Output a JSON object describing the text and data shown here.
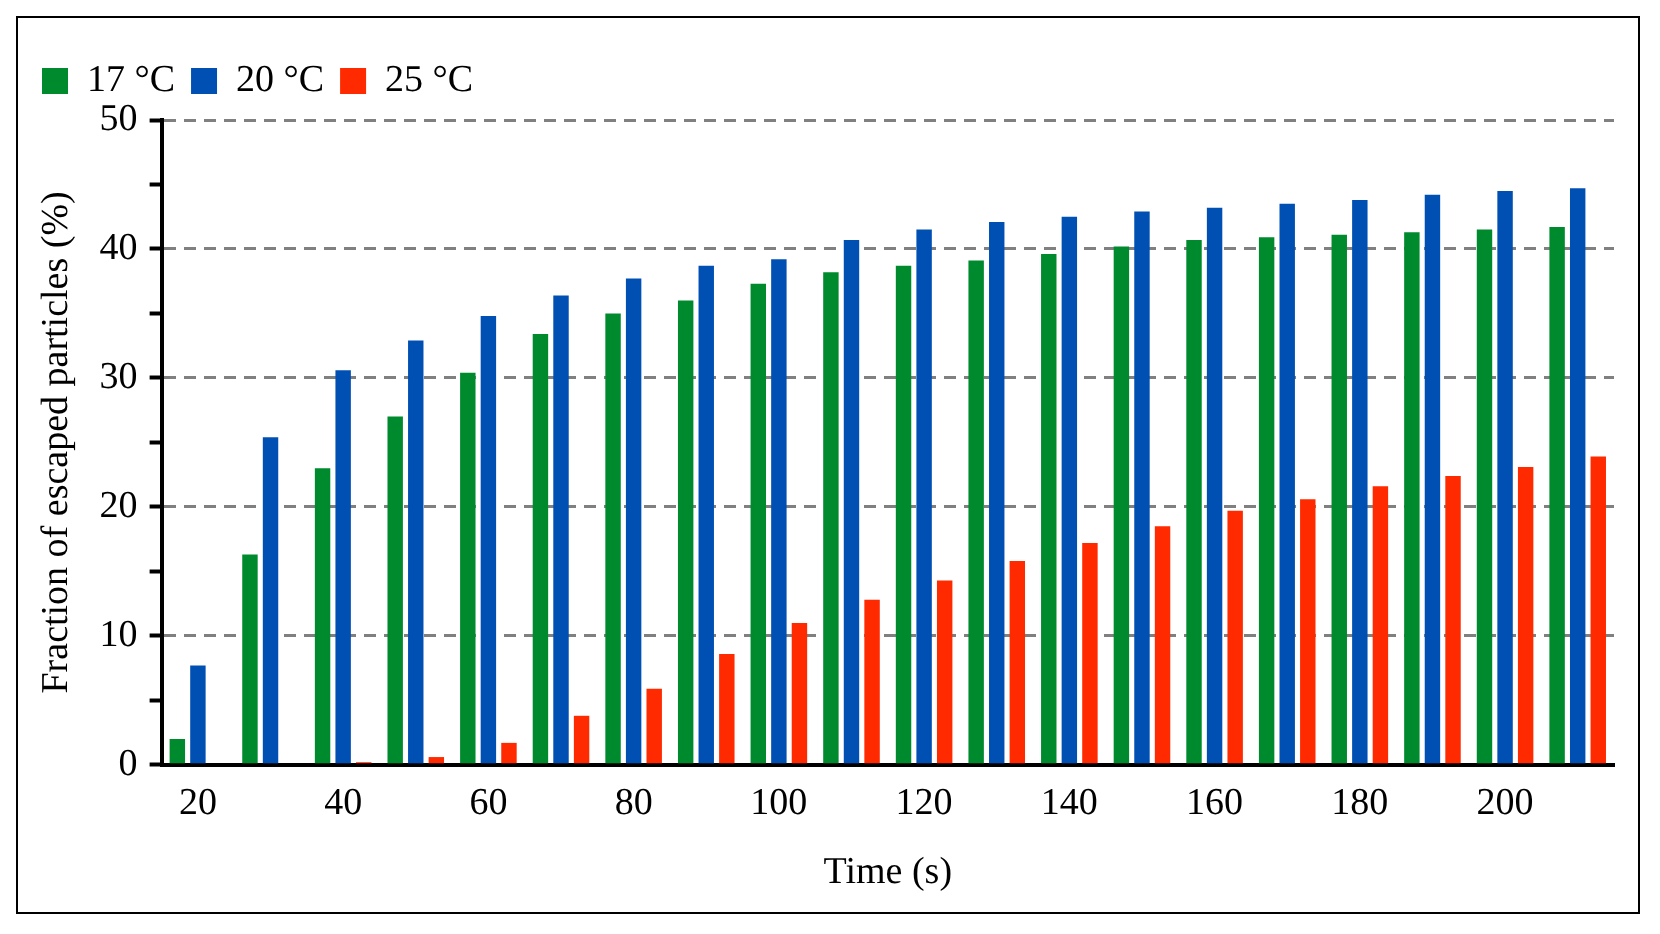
{
  "chart_data": {
    "type": "bar",
    "xlabel": "Time (s)",
    "ylabel": "Fraction of escaped particles (%)",
    "categories": [
      "20",
      null,
      "40",
      null,
      "60",
      null,
      "80",
      null,
      "100",
      null,
      "120",
      null,
      "140",
      null,
      "160",
      null,
      "180",
      null,
      "200",
      null
    ],
    "series": [
      {
        "name": "17 °C",
        "color": "#008a2e",
        "values": [
          2,
          16.3,
          23,
          27,
          30.4,
          33.4,
          35,
          36,
          37.3,
          38.2,
          38.7,
          39.1,
          39.6,
          40.2,
          40.7,
          40.9,
          41.1,
          41.3,
          41.5,
          41.7
        ]
      },
      {
        "name": "20 °C",
        "color": "#0050b4",
        "values": [
          7.7,
          25.4,
          30.6,
          32.9,
          34.8,
          36.4,
          37.7,
          38.7,
          39.2,
          40.7,
          41.5,
          42.1,
          42.5,
          42.9,
          43.2,
          43.5,
          43.8,
          44.2,
          44.5,
          44.7
        ]
      },
      {
        "name": "25 °C",
        "color": "#ff2a00",
        "values": [
          0,
          0,
          0.2,
          0.6,
          1.7,
          3.8,
          5.9,
          8.6,
          11,
          12.8,
          14.3,
          15.8,
          17.2,
          18.5,
          19.7,
          20.6,
          21.6,
          22.4,
          23.1,
          23.9
        ]
      }
    ],
    "ylim": [
      0,
      50
    ],
    "yticks": [
      0,
      {
        "value": 5,
        "label": null
      },
      10,
      {
        "value": 15,
        "label": null
      },
      20,
      {
        "value": 25,
        "label": null
      },
      30,
      {
        "value": 35,
        "label": null
      },
      40,
      {
        "value": 45,
        "label": null
      },
      50
    ],
    "grid": "y",
    "legend": "top left"
  }
}
